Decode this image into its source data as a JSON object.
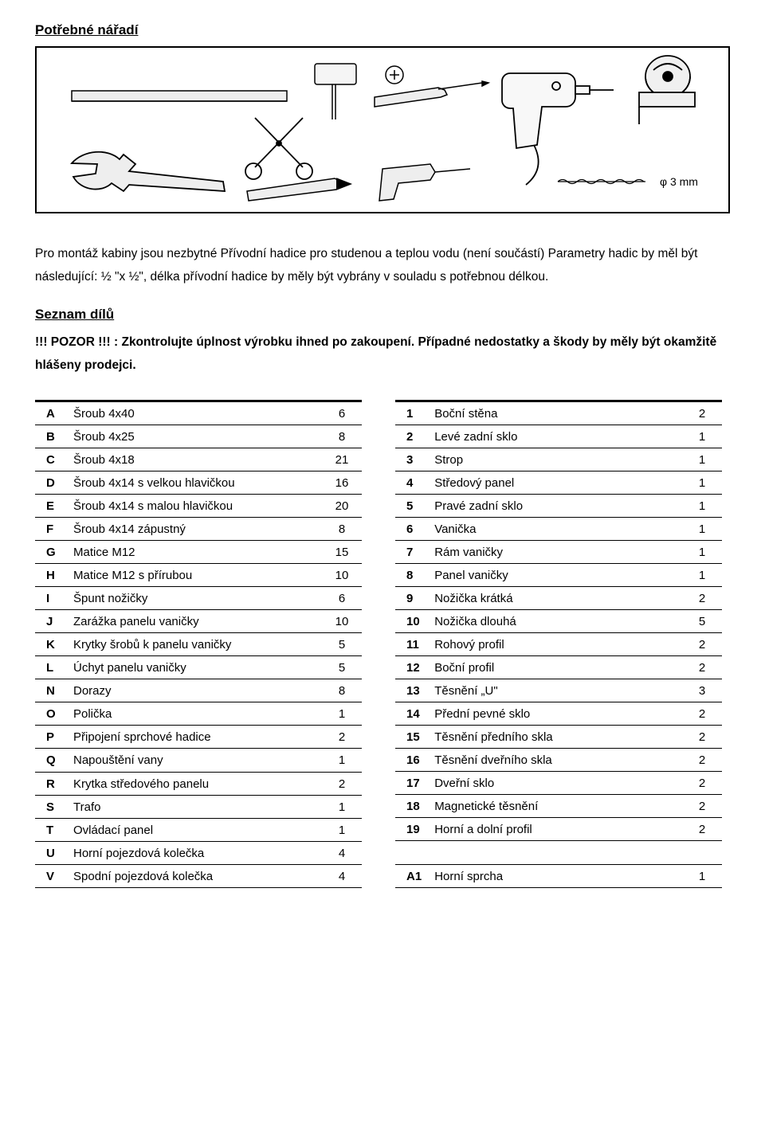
{
  "title_tools": "Potřebné nářadí",
  "diagram_label": "φ 3 mm",
  "paragraph": "Pro montáž kabiny jsou nezbytné Přívodní hadice pro studenou a teplou vodu (není součástí) Parametry hadic by měl být následující: ½ \"x ½\", délka přívodní hadice by měly být vybrány v souladu s potřebnou délkou.",
  "title_parts": "Seznam dílů",
  "warning_text": "!!! POZOR !!! : Zkontrolujte úplnost výrobku ihned po zakoupení. Případné nedostatky a škody by měly být okamžitě hlášeny prodejci.",
  "left_table": [
    {
      "id": "A",
      "name": "Šroub 4x40",
      "qty": "6"
    },
    {
      "id": "B",
      "name": "Šroub 4x25",
      "qty": "8"
    },
    {
      "id": "C",
      "name": "Šroub 4x18",
      "qty": "21"
    },
    {
      "id": "D",
      "name": "Šroub 4x14 s velkou hlavičkou",
      "qty": "16"
    },
    {
      "id": "E",
      "name": "Šroub 4x14 s malou hlavičkou",
      "qty": "20"
    },
    {
      "id": "F",
      "name": "Šroub 4x14 zápustný",
      "qty": "8"
    },
    {
      "id": "G",
      "name": "Matice M12",
      "qty": "15"
    },
    {
      "id": "H",
      "name": "Matice M12 s přírubou",
      "qty": "10"
    },
    {
      "id": "I",
      "name": "Špunt nožičky",
      "qty": "6"
    },
    {
      "id": "J",
      "name": "Zarážka panelu vaničky",
      "qty": "10"
    },
    {
      "id": "K",
      "name": "Krytky šrobů k panelu vaničky",
      "qty": "5"
    },
    {
      "id": "L",
      "name": "Úchyt panelu vaničky",
      "qty": "5"
    },
    {
      "id": "N",
      "name": "Dorazy",
      "qty": "8"
    },
    {
      "id": "O",
      "name": "Polička",
      "qty": "1"
    },
    {
      "id": "P",
      "name": "Připojení sprchové hadice",
      "qty": "2"
    },
    {
      "id": "Q",
      "name": "Napouštění vany",
      "qty": "1"
    },
    {
      "id": "R",
      "name": "Krytka středového panelu",
      "qty": "2"
    },
    {
      "id": "S",
      "name": "Trafo",
      "qty": "1"
    },
    {
      "id": "T",
      "name": "Ovládací panel",
      "qty": "1"
    },
    {
      "id": "U",
      "name": "Horní pojezdová kolečka",
      "qty": "4"
    },
    {
      "id": "V",
      "name": "Spodní pojezdová kolečka",
      "qty": "4"
    }
  ],
  "right_table": [
    {
      "id": "1",
      "name": "Boční stěna",
      "qty": "2"
    },
    {
      "id": "2",
      "name": "Levé zadní sklo",
      "qty": "1"
    },
    {
      "id": "3",
      "name": "Strop",
      "qty": "1"
    },
    {
      "id": "4",
      "name": "Středový panel",
      "qty": "1"
    },
    {
      "id": "5",
      "name": "Pravé zadní sklo",
      "qty": "1"
    },
    {
      "id": "6",
      "name": "Vanička",
      "qty": "1"
    },
    {
      "id": "7",
      "name": "Rám vaničky",
      "qty": "1"
    },
    {
      "id": "8",
      "name": "Panel vaničky",
      "qty": "1"
    },
    {
      "id": "9",
      "name": "Nožička krátká",
      "qty": "2"
    },
    {
      "id": "10",
      "name": "Nožička dlouhá",
      "qty": "5"
    },
    {
      "id": "11",
      "name": "Rohový profil",
      "qty": "2"
    },
    {
      "id": "12",
      "name": "Boční profil",
      "qty": "2"
    },
    {
      "id": "13",
      "name": "Těsnění „U\"",
      "qty": "3"
    },
    {
      "id": "14",
      "name": "Přední pevné sklo",
      "qty": "2"
    },
    {
      "id": "15",
      "name": "Těsnění předního skla",
      "qty": "2"
    },
    {
      "id": "16",
      "name": "Těsnění dveřního skla",
      "qty": "2"
    },
    {
      "id": "17",
      "name": "Dveřní sklo",
      "qty": "2"
    },
    {
      "id": "18",
      "name": "Magnetické těsnění",
      "qty": "2"
    },
    {
      "id": "19",
      "name": "Horní a dolní profil",
      "qty": "2"
    },
    {
      "id": "",
      "name": "",
      "qty": "",
      "blank": true
    },
    {
      "id": "A1",
      "name": "Horní sprcha",
      "qty": "1"
    }
  ],
  "colors": {
    "text": "#000000",
    "background": "#ffffff",
    "border": "#000000",
    "tool_fill": "#e5e5e5"
  }
}
